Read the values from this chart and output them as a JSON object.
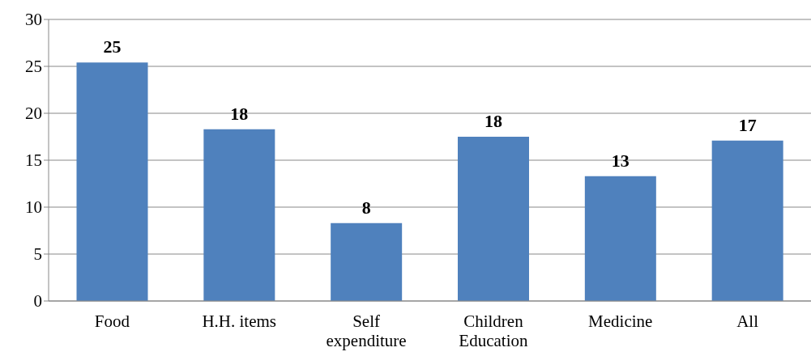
{
  "chart_data": {
    "type": "bar",
    "categories": [
      "Food",
      "H.H. items",
      "Self expenditure",
      "Children Education",
      "Medicine",
      "All"
    ],
    "values": [
      25.4,
      18.3,
      8.3,
      17.5,
      13.3,
      17.1
    ],
    "value_labels": [
      "25",
      "18",
      "8",
      "18",
      "13",
      "17"
    ],
    "color": "#4f81bd",
    "ylim": [
      0,
      30
    ],
    "yticks": [
      0,
      5,
      10,
      15,
      20,
      25,
      30
    ],
    "grid": "y",
    "legend": false
  }
}
